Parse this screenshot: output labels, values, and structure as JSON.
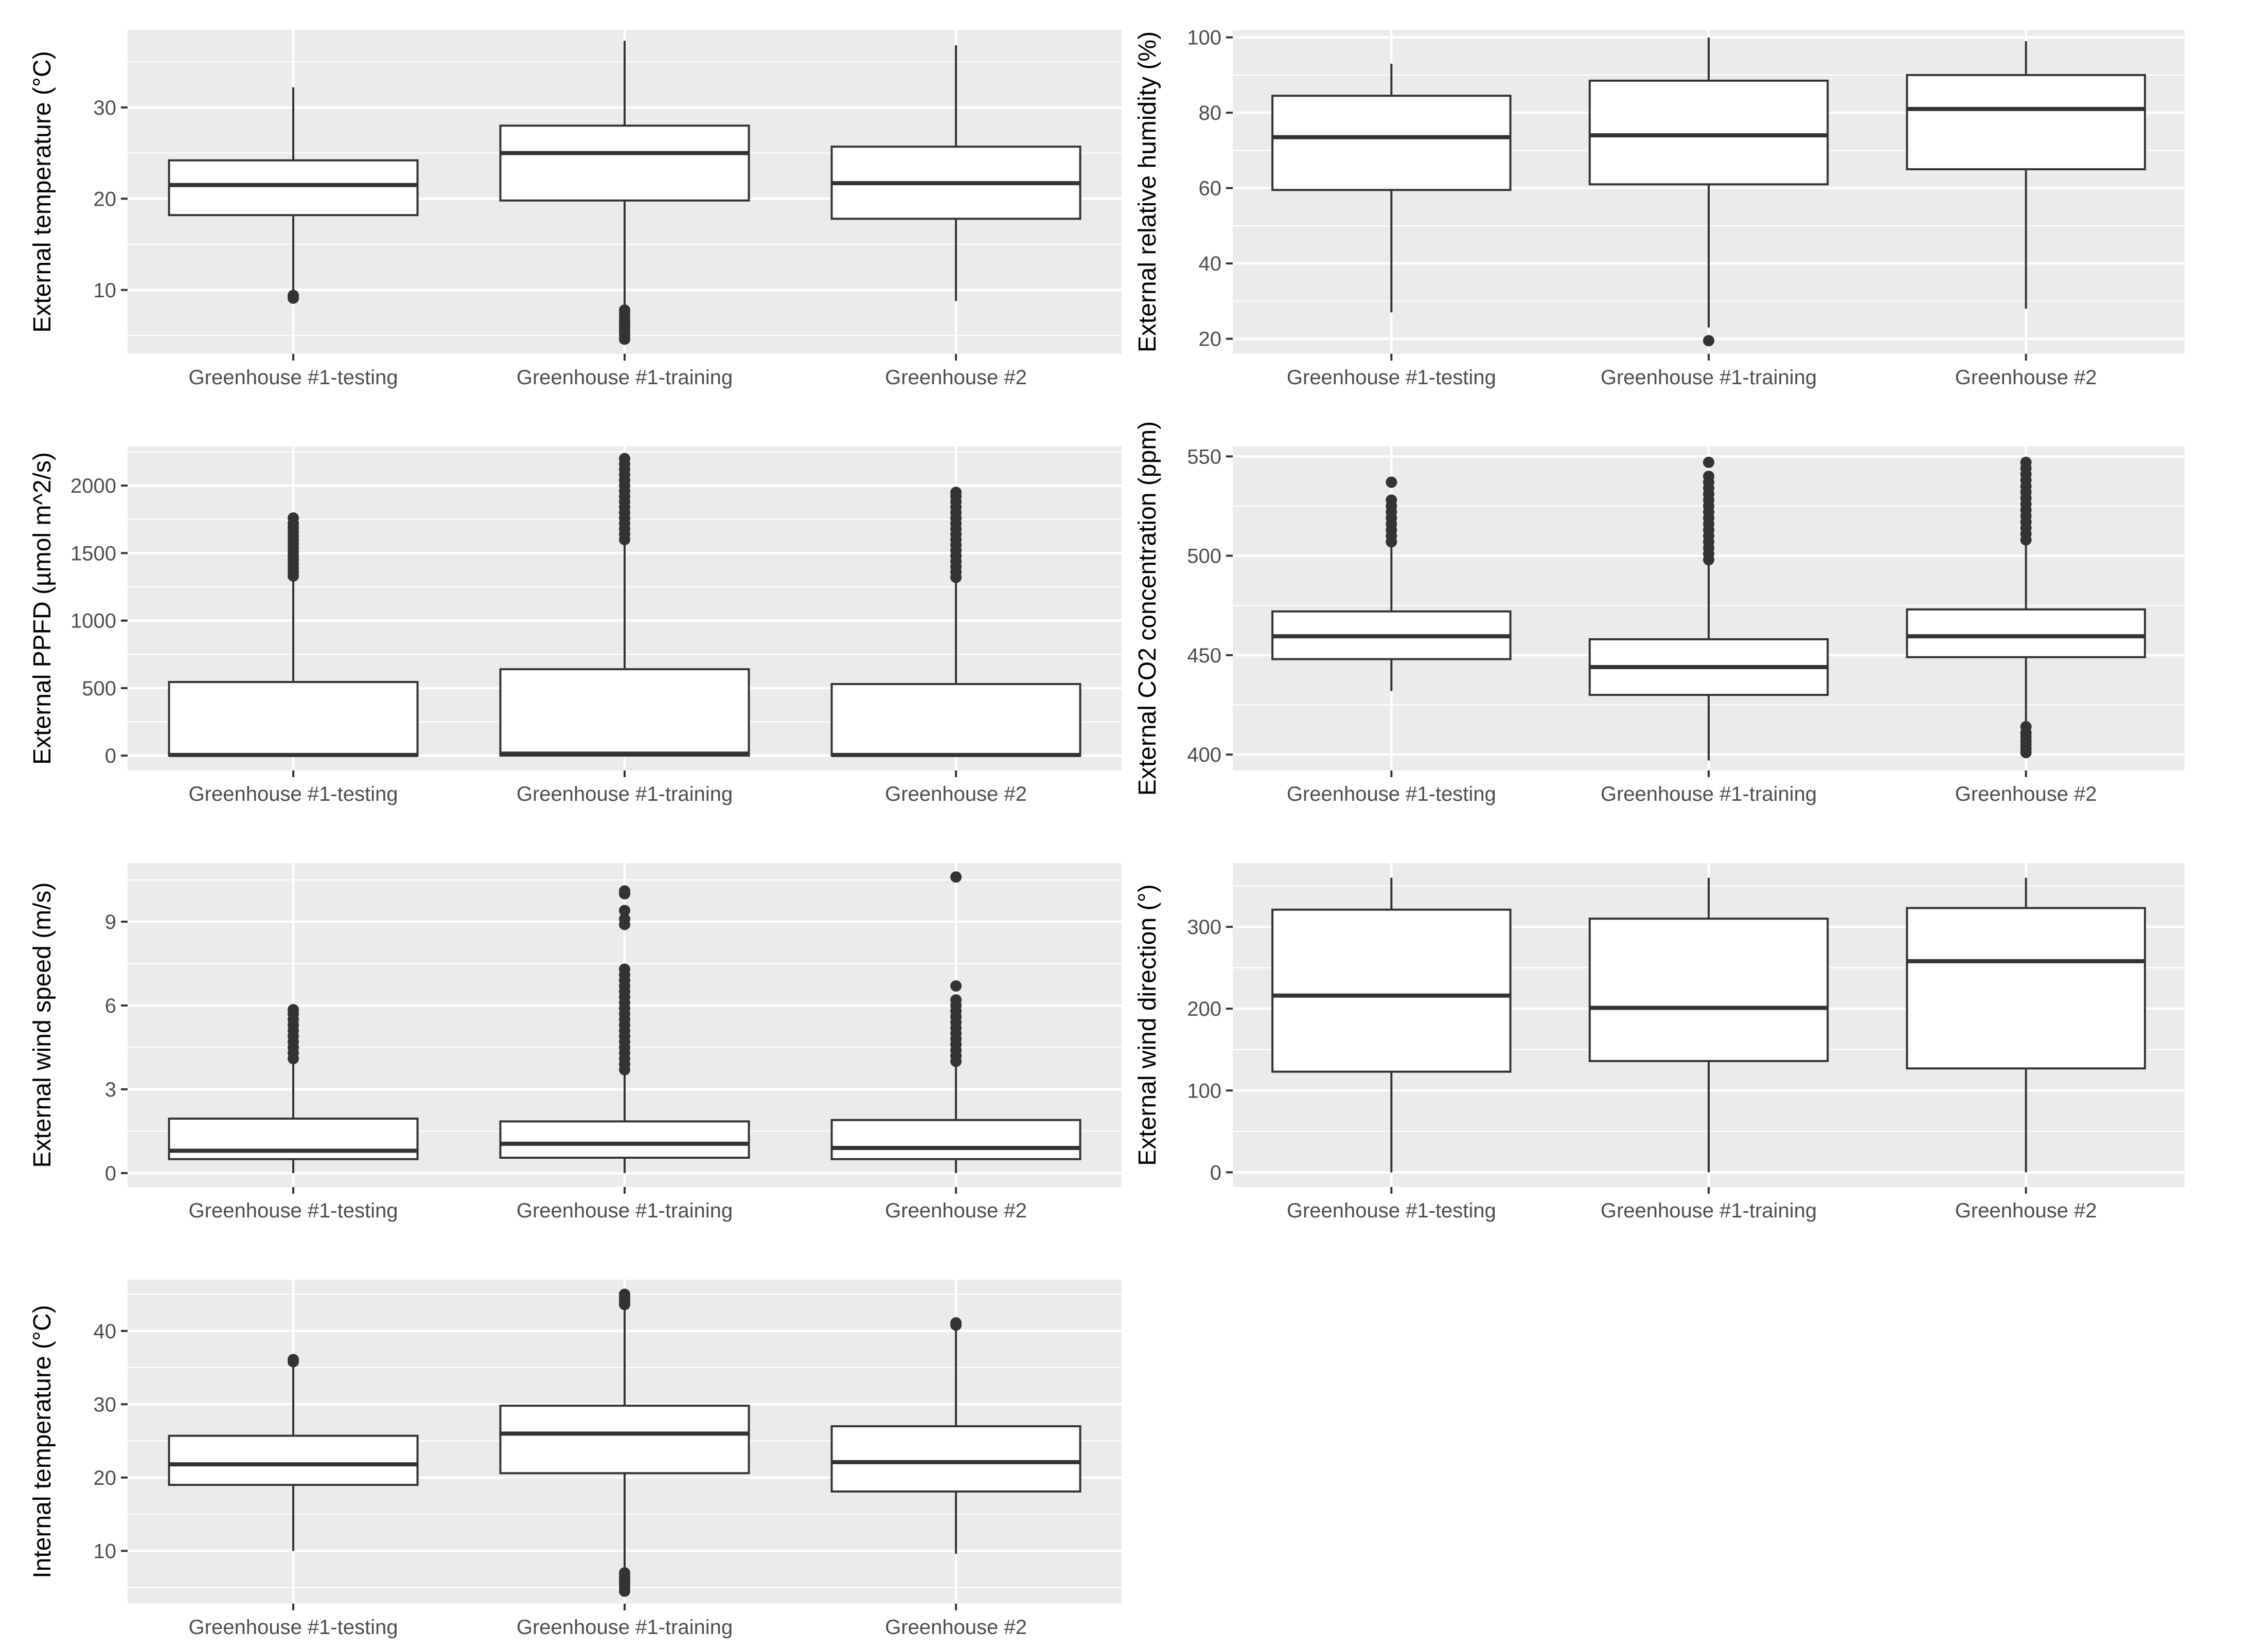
{
  "colors": {
    "panel_bg": "#ebebeb",
    "grid": "#ffffff",
    "box_fill": "#ffffff",
    "box_line": "#333333",
    "tick_text": "#4d4d4d",
    "axis_title": "#000000"
  },
  "chart_data": [
    {
      "id": "ext-temp",
      "type": "boxplot",
      "ylabel": "External temperature (°C)",
      "categories": [
        "Greenhouse #1-testing",
        "Greenhouse #1-training",
        "Greenhouse #2"
      ],
      "ylim": [
        3,
        38.5
      ],
      "yticks": [
        10,
        20,
        30
      ],
      "boxes": [
        {
          "whisker_low": 9.8,
          "q1": 18.2,
          "median": 21.5,
          "q3": 24.2,
          "whisker_high": 32.2,
          "outliers": [
            9.1,
            9.4
          ]
        },
        {
          "whisker_low": 8.0,
          "q1": 19.8,
          "median": 25.0,
          "q3": 28.0,
          "whisker_high": 37.3,
          "outliers": [
            4.6,
            5.0,
            5.4,
            5.8,
            6.2,
            6.6,
            7.0,
            7.4,
            7.8
          ]
        },
        {
          "whisker_low": 8.8,
          "q1": 17.8,
          "median": 21.7,
          "q3": 25.7,
          "whisker_high": 36.8,
          "outliers": []
        }
      ]
    },
    {
      "id": "ext-rh",
      "type": "boxplot",
      "ylabel": "External relative humidity (%)",
      "categories": [
        "Greenhouse #1-testing",
        "Greenhouse #1-training",
        "Greenhouse #2"
      ],
      "ylim": [
        16,
        102
      ],
      "yticks": [
        20,
        40,
        60,
        80,
        100
      ],
      "boxes": [
        {
          "whisker_low": 27,
          "q1": 59.5,
          "median": 73.5,
          "q3": 84.5,
          "whisker_high": 93,
          "outliers": []
        },
        {
          "whisker_low": 23,
          "q1": 61,
          "median": 74,
          "q3": 88.5,
          "whisker_high": 100,
          "outliers": [
            19.5
          ]
        },
        {
          "whisker_low": 28,
          "q1": 65,
          "median": 81,
          "q3": 90,
          "whisker_high": 99,
          "outliers": []
        }
      ]
    },
    {
      "id": "ext-ppfd",
      "type": "boxplot",
      "ylabel": "External PPFD (µmol m^2/s)",
      "categories": [
        "Greenhouse #1-testing",
        "Greenhouse #1-training",
        "Greenhouse #2"
      ],
      "ylim": [
        -110,
        2290
      ],
      "yticks": [
        0,
        500,
        1000,
        1500,
        2000
      ],
      "boxes": [
        {
          "whisker_low": 0,
          "q1": 0,
          "median": 5,
          "q3": 545,
          "whisker_high": 1310,
          "outliers": [
            1330,
            1360,
            1390,
            1420,
            1450,
            1480,
            1510,
            1540,
            1570,
            1600,
            1630,
            1660,
            1690,
            1720,
            1760
          ]
        },
        {
          "whisker_low": 0,
          "q1": 0,
          "median": 15,
          "q3": 640,
          "whisker_high": 1580,
          "outliers": [
            1600,
            1640,
            1680,
            1720,
            1760,
            1800,
            1840,
            1880,
            1920,
            1960,
            2000,
            2040,
            2080,
            2120,
            2160,
            2200
          ]
        },
        {
          "whisker_low": 0,
          "q1": 0,
          "median": 5,
          "q3": 530,
          "whisker_high": 1300,
          "outliers": [
            1320,
            1360,
            1400,
            1440,
            1480,
            1520,
            1560,
            1600,
            1640,
            1680,
            1720,
            1760,
            1800,
            1840,
            1880,
            1920,
            1950
          ]
        }
      ]
    },
    {
      "id": "ext-co2",
      "type": "boxplot",
      "ylabel": "External CO2 concentration (ppm)",
      "categories": [
        "Greenhouse #1-testing",
        "Greenhouse #1-training",
        "Greenhouse #2"
      ],
      "ylim": [
        392,
        555
      ],
      "yticks": [
        400,
        450,
        500,
        550
      ],
      "boxes": [
        {
          "whisker_low": 432,
          "q1": 448,
          "median": 459.5,
          "q3": 472,
          "whisker_high": 505,
          "outliers": [
            507,
            510,
            513,
            516,
            519,
            522,
            525,
            528,
            537
          ]
        },
        {
          "whisker_low": 397,
          "q1": 430,
          "median": 444,
          "q3": 458,
          "whisker_high": 496,
          "outliers": [
            498,
            501,
            504,
            507,
            510,
            513,
            516,
            519,
            522,
            525,
            528,
            531,
            534,
            537,
            540,
            547
          ]
        },
        {
          "whisker_low": 416,
          "q1": 449,
          "median": 459.5,
          "q3": 473,
          "whisker_high": 506,
          "outliers": [
            401,
            403,
            405,
            407,
            409,
            411,
            414,
            508,
            511,
            514,
            517,
            520,
            523,
            526,
            529,
            532,
            535,
            538,
            541,
            544,
            547
          ]
        }
      ]
    },
    {
      "id": "ext-wind-speed",
      "type": "boxplot",
      "ylabel": "External wind speed (m/s)",
      "categories": [
        "Greenhouse #1-testing",
        "Greenhouse #1-training",
        "Greenhouse #2"
      ],
      "ylim": [
        -0.5,
        11.1
      ],
      "yticks": [
        0,
        3,
        6,
        9
      ],
      "boxes": [
        {
          "whisker_low": 0,
          "q1": 0.5,
          "median": 0.8,
          "q3": 1.95,
          "whisker_high": 4.0,
          "outliers": [
            4.1,
            4.3,
            4.5,
            4.7,
            4.9,
            5.1,
            5.3,
            5.5,
            5.7,
            5.85
          ]
        },
        {
          "whisker_low": 0,
          "q1": 0.55,
          "median": 1.05,
          "q3": 1.85,
          "whisker_high": 3.6,
          "outliers": [
            3.7,
            3.9,
            4.1,
            4.3,
            4.5,
            4.7,
            4.9,
            5.1,
            5.3,
            5.5,
            5.7,
            5.9,
            6.1,
            6.3,
            6.5,
            6.7,
            6.9,
            7.1,
            7.3,
            8.9,
            9.1,
            9.4,
            10.0,
            10.1
          ]
        },
        {
          "whisker_low": 0,
          "q1": 0.5,
          "median": 0.9,
          "q3": 1.9,
          "whisker_high": 3.9,
          "outliers": [
            4.0,
            4.2,
            4.4,
            4.6,
            4.8,
            5.0,
            5.2,
            5.4,
            5.6,
            5.8,
            6.0,
            6.2,
            6.7,
            10.6
          ]
        }
      ]
    },
    {
      "id": "ext-wind-dir",
      "type": "boxplot",
      "ylabel": "External wind direction (°)",
      "categories": [
        "Greenhouse #1-testing",
        "Greenhouse #1-training",
        "Greenhouse #2"
      ],
      "ylim": [
        -18,
        378
      ],
      "yticks": [
        0,
        100,
        200,
        300
      ],
      "boxes": [
        {
          "whisker_low": 0,
          "q1": 123,
          "median": 216,
          "q3": 321,
          "whisker_high": 360,
          "outliers": []
        },
        {
          "whisker_low": 0,
          "q1": 136,
          "median": 201,
          "q3": 310,
          "whisker_high": 360,
          "outliers": []
        },
        {
          "whisker_low": 0,
          "q1": 127,
          "median": 258,
          "q3": 323,
          "whisker_high": 360,
          "outliers": []
        }
      ]
    },
    {
      "id": "int-temp",
      "type": "boxplot",
      "ylabel": "Internal temperature (°C)",
      "categories": [
        "Greenhouse #1-testing",
        "Greenhouse #1-training",
        "Greenhouse #2"
      ],
      "ylim": [
        2.8,
        47
      ],
      "yticks": [
        10,
        20,
        30,
        40
      ],
      "boxes": [
        {
          "whisker_low": 10,
          "q1": 19,
          "median": 21.8,
          "q3": 25.7,
          "whisker_high": 35.5,
          "outliers": [
            35.8,
            36.1
          ]
        },
        {
          "whisker_low": 7.5,
          "q1": 20.6,
          "median": 26,
          "q3": 29.8,
          "whisker_high": 43.2,
          "outliers": [
            4.5,
            5.0,
            5.5,
            6.0,
            6.5,
            7.0,
            43.6,
            44.0,
            44.5,
            45.0
          ]
        },
        {
          "whisker_low": 9.6,
          "q1": 18.1,
          "median": 22.1,
          "q3": 27,
          "whisker_high": 40.5,
          "outliers": [
            40.8,
            41.1
          ]
        }
      ]
    }
  ]
}
